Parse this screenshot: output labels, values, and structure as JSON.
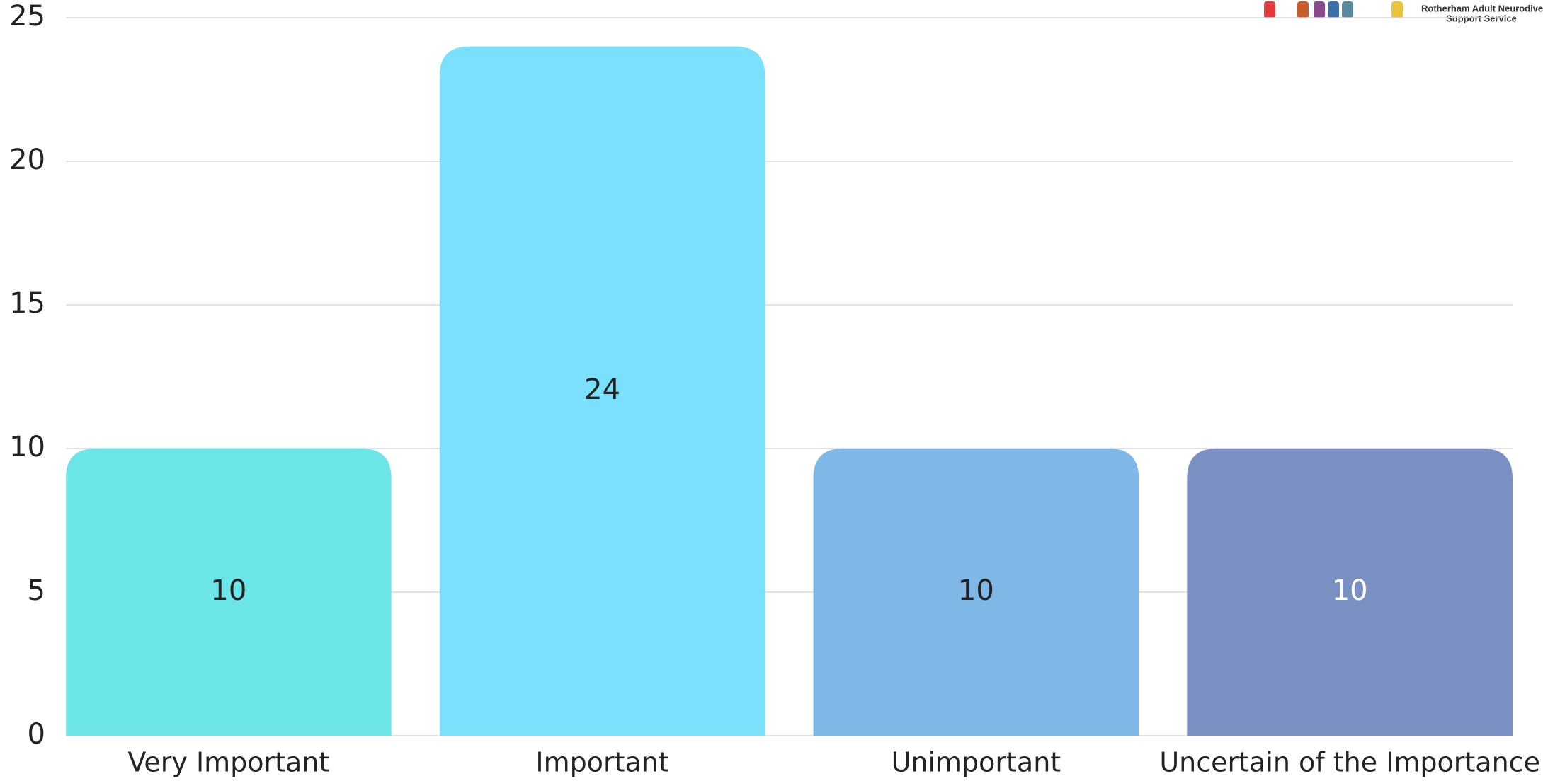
{
  "chart_data": {
    "type": "bar",
    "categories": [
      "Very Important",
      "Important",
      "Unimportant",
      "Uncertain of the Importance"
    ],
    "values": [
      10,
      24,
      10,
      10
    ],
    "colors": [
      "#6ce5e8",
      "#7ae0fc",
      "#7fb8e6",
      "#7b90c2"
    ],
    "ylim": [
      0,
      25
    ],
    "yticks": [
      0,
      5,
      10,
      15,
      20,
      25
    ],
    "grid": true
  },
  "logo": {
    "line1": "Rotherham Adult Neurodiver",
    "line2": "Support Service"
  }
}
